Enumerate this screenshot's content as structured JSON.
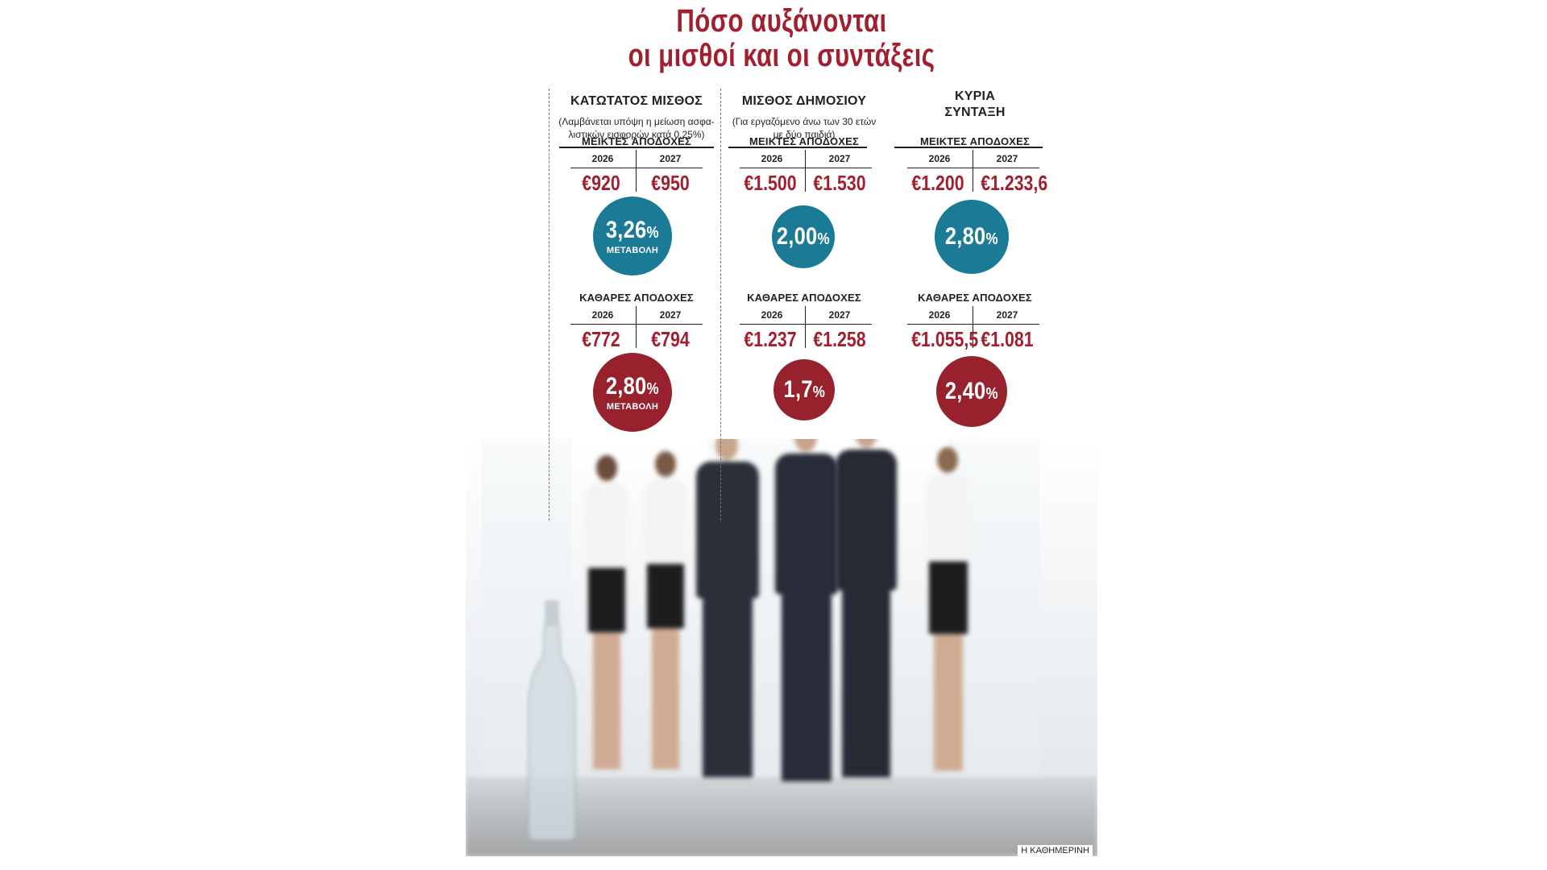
{
  "header": {
    "title_line1": "Πόσο αυξάνονται",
    "title_line2": "οι μισθοί και οι συντάξεις"
  },
  "labels": {
    "gross": "ΜΕΙΚΤΕΣ ΑΠΟΔΟΧΕΣ",
    "net": "ΚΑΘΑΡΕΣ ΑΠΟΔΟΧΕΣ",
    "year1": "2026",
    "year2": "2027",
    "change": "ΜΕΤΑΒΟΛΗ",
    "percent_sign": "%"
  },
  "columns": [
    {
      "title": "ΚΑΤΩΤΑΤΟΣ ΜΙΣΘΟΣ",
      "title_line2": "",
      "note": "(Λαμβάνεται υπόψη η μείωση ασφα-\nλιστικών εισφορών κατά 0,25%)",
      "gross": {
        "y2026": "€920",
        "y2027": "€950",
        "change": "3,26",
        "show_caption": true
      },
      "net": {
        "y2026": "€772",
        "y2027": "€794",
        "change": "2,80",
        "show_caption": true
      }
    },
    {
      "title": "ΜΙΣΘΟΣ ΔΗΜΟΣΙΟΥ",
      "title_line2": "",
      "note": "(Για εργαζόμενο άνω των 30 ετών\nμε δύο παιδιά)",
      "gross": {
        "y2026": "€1.500",
        "y2027": "€1.530",
        "change": "2,00",
        "show_caption": false
      },
      "net": {
        "y2026": "€1.237",
        "y2027": "€1.258",
        "change": "1,7",
        "show_caption": false
      }
    },
    {
      "title": "ΚΥΡΙΑ",
      "title_line2": "ΣΥΝΤΑΞΗ",
      "note": "",
      "gross": {
        "y2026": "€1.200",
        "y2027": "€1.233,6",
        "change": "2,80",
        "show_caption": false
      },
      "net": {
        "y2026": "€1.055,5",
        "y2027": "€1.081",
        "change": "2,40",
        "show_caption": false
      }
    }
  ],
  "colors": {
    "accent_red": "#a11f2e",
    "circle_teal": "#1b7a95",
    "circle_red": "#97212c"
  },
  "footer": {
    "credit": "Η ΚΑΘΗΜΕΡΙΝΗ"
  }
}
